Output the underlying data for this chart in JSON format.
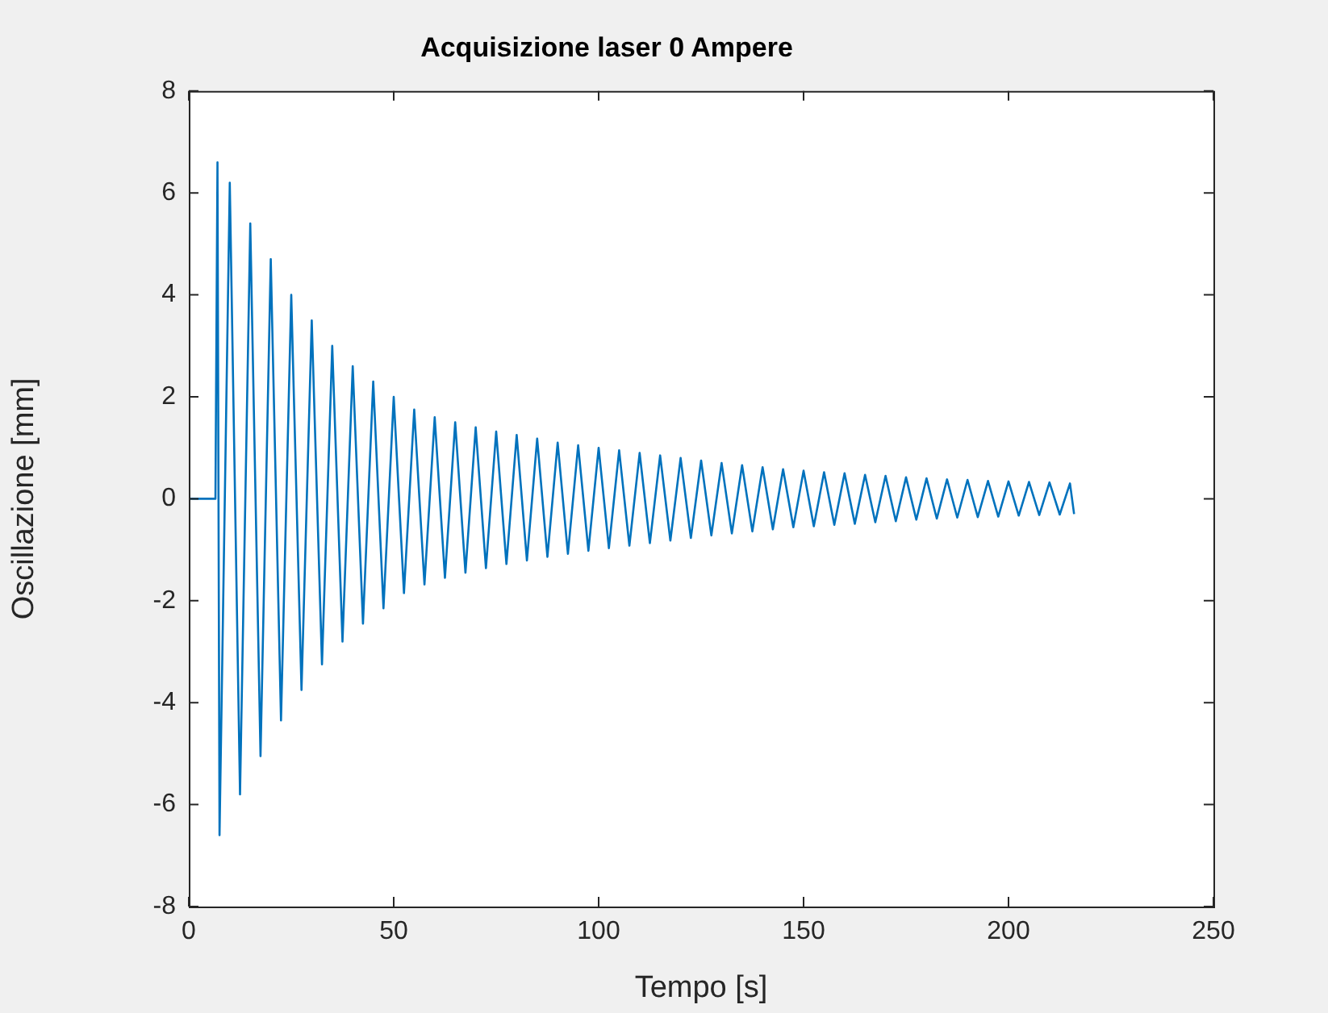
{
  "chart_data": {
    "type": "line",
    "title": "Acquisizione laser 0 Ampere",
    "xlabel": "Tempo [s]",
    "ylabel": "Oscillazione [mm]",
    "x": [
      0,
      6.5,
      7,
      7.5,
      10,
      12.5,
      15,
      17.5,
      20,
      22.5,
      25,
      27.5,
      30,
      32.5,
      35,
      37.5,
      40,
      42.5,
      45,
      47.5,
      50,
      52.5,
      55,
      57.5,
      60,
      62.5,
      65,
      67.5,
      70,
      72.5,
      75,
      77.5,
      80,
      82.5,
      85,
      87.5,
      90,
      92.5,
      95,
      97.5,
      100,
      102.5,
      105,
      107.5,
      110,
      112.5,
      115,
      117.5,
      120,
      122.5,
      125,
      127.5,
      130,
      132.5,
      135,
      137.5,
      140,
      142.5,
      145,
      147.5,
      150,
      152.5,
      155,
      157.5,
      160,
      162.5,
      165,
      167.5,
      170,
      172.5,
      175,
      177.5,
      180,
      182.5,
      185,
      187.5,
      190,
      192.5,
      195,
      197.5,
      200,
      202.5,
      205,
      207.5,
      210,
      212.5,
      215,
      216
    ],
    "series": [
      {
        "color": "#0072bd",
        "values": [
          0,
          0,
          6.6,
          -6.6,
          6.2,
          -5.8,
          5.4,
          -5.05,
          4.7,
          -4.35,
          4.0,
          -3.75,
          3.5,
          -3.25,
          3.0,
          -2.8,
          2.6,
          -2.45,
          2.3,
          -2.15,
          2.0,
          -1.85,
          1.75,
          -1.68,
          1.6,
          -1.55,
          1.5,
          -1.45,
          1.4,
          -1.36,
          1.32,
          -1.28,
          1.25,
          -1.21,
          1.18,
          -1.14,
          1.1,
          -1.08,
          1.05,
          -1.02,
          1.0,
          -0.97,
          0.95,
          -0.92,
          0.9,
          -0.87,
          0.85,
          -0.82,
          0.8,
          -0.77,
          0.75,
          -0.72,
          0.7,
          -0.68,
          0.66,
          -0.64,
          0.62,
          -0.6,
          0.58,
          -0.56,
          0.55,
          -0.54,
          0.52,
          -0.51,
          0.5,
          -0.49,
          0.47,
          -0.46,
          0.45,
          -0.44,
          0.42,
          -0.41,
          0.4,
          -0.39,
          0.38,
          -0.37,
          0.37,
          -0.36,
          0.35,
          -0.35,
          0.34,
          -0.33,
          0.33,
          -0.32,
          0.32,
          -0.31,
          0.3,
          -0.3
        ]
      }
    ],
    "xlim": [
      0,
      250
    ],
    "xticks": [
      0,
      50,
      100,
      150,
      200,
      250
    ],
    "ylim": [
      -8,
      8
    ],
    "yticks": [
      -8,
      -6,
      -4,
      -2,
      0,
      2,
      4,
      6,
      8
    ],
    "grid": false,
    "legend": false,
    "marker": "none",
    "line_style": "solid"
  }
}
